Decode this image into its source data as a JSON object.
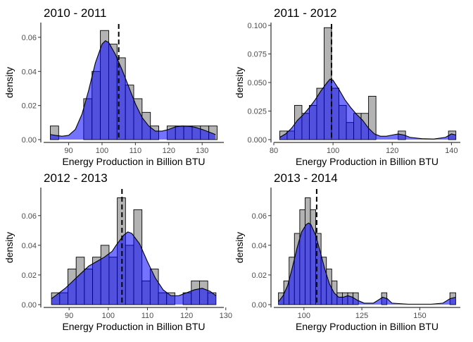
{
  "chart_data": [
    {
      "type": "histogram",
      "title": "2010 - 2011",
      "xlabel": "Energy Production in Billion BTU",
      "ylabel": "density",
      "xlim": [
        82.5,
        136.5
      ],
      "ylim": [
        0,
        0.067
      ],
      "xticks": [
        90,
        100,
        110,
        120,
        130
      ],
      "yticks": [
        0.0,
        0.02,
        0.04,
        0.06
      ],
      "ytick_labels": [
        "0.00",
        "0.02",
        "0.04",
        "0.06"
      ],
      "mean_line": 105,
      "bins": [
        {
          "x0": 84.5,
          "x1": 87,
          "density": 0.008
        },
        {
          "x0": 87,
          "x1": 89.5,
          "density": 0.0
        },
        {
          "x0": 89.5,
          "x1": 92,
          "density": 0.0
        },
        {
          "x0": 92,
          "x1": 94.5,
          "density": 0.0
        },
        {
          "x0": 94.5,
          "x1": 97,
          "density": 0.024
        },
        {
          "x0": 97,
          "x1": 99.5,
          "density": 0.04
        },
        {
          "x0": 99.5,
          "x1": 102,
          "density": 0.064
        },
        {
          "x0": 102,
          "x1": 104.5,
          "density": 0.056
        },
        {
          "x0": 104.5,
          "x1": 107,
          "density": 0.048
        },
        {
          "x0": 107,
          "x1": 109.5,
          "density": 0.032
        },
        {
          "x0": 109.5,
          "x1": 112,
          "density": 0.024
        },
        {
          "x0": 112,
          "x1": 114.5,
          "density": 0.016
        },
        {
          "x0": 114.5,
          "x1": 117,
          "density": 0.008
        },
        {
          "x0": 117,
          "x1": 119.5,
          "density": 0.0
        },
        {
          "x0": 119.5,
          "x1": 122,
          "density": 0.008
        },
        {
          "x0": 122,
          "x1": 124.5,
          "density": 0.008
        },
        {
          "x0": 124.5,
          "x1": 127,
          "density": 0.008
        },
        {
          "x0": 127,
          "x1": 129.5,
          "density": 0.008
        },
        {
          "x0": 129.5,
          "x1": 132,
          "density": 0.008
        },
        {
          "x0": 132,
          "x1": 134.5,
          "density": 0.008
        }
      ],
      "density_curve": [
        [
          84.5,
          0.003
        ],
        [
          86,
          0.0025
        ],
        [
          88,
          0.002
        ],
        [
          90,
          0.0025
        ],
        [
          92,
          0.006
        ],
        [
          94,
          0.015
        ],
        [
          96,
          0.029
        ],
        [
          98,
          0.045
        ],
        [
          100,
          0.056
        ],
        [
          101,
          0.058
        ],
        [
          102,
          0.057
        ],
        [
          104,
          0.05
        ],
        [
          106,
          0.041
        ],
        [
          108,
          0.031
        ],
        [
          110,
          0.021
        ],
        [
          112,
          0.013
        ],
        [
          114,
          0.008
        ],
        [
          116,
          0.005
        ],
        [
          118,
          0.005
        ],
        [
          120,
          0.006
        ],
        [
          122,
          0.0075
        ],
        [
          124,
          0.008
        ],
        [
          126,
          0.0078
        ],
        [
          128,
          0.0072
        ],
        [
          130,
          0.006
        ],
        [
          132,
          0.0045
        ],
        [
          134,
          0.003
        ]
      ]
    },
    {
      "type": "histogram",
      "title": "2011 - 2012",
      "xlabel": "Energy Production in Billion BTU",
      "ylabel": "density",
      "xlim": [
        80,
        143
      ],
      "ylim": [
        0,
        0.1
      ],
      "xticks": [
        80,
        100,
        120,
        140
      ],
      "yticks": [
        0.0,
        0.025,
        0.05,
        0.075,
        0.1
      ],
      "ytick_labels": [
        "0.000",
        "0.025",
        "0.050",
        "0.075",
        "0.100"
      ],
      "mean_line": 99.5,
      "bins": [
        {
          "x0": 82,
          "x1": 84.5,
          "density": 0.0075
        },
        {
          "x0": 84.5,
          "x1": 87,
          "density": 0.0075
        },
        {
          "x0": 87,
          "x1": 89.5,
          "density": 0.03
        },
        {
          "x0": 89.5,
          "x1": 92,
          "density": 0.023
        },
        {
          "x0": 92,
          "x1": 94.5,
          "density": 0.03
        },
        {
          "x0": 94.5,
          "x1": 97,
          "density": 0.045
        },
        {
          "x0": 97,
          "x1": 99.5,
          "density": 0.098
        },
        {
          "x0": 99.5,
          "x1": 102,
          "density": 0.045
        },
        {
          "x0": 102,
          "x1": 104.5,
          "density": 0.03
        },
        {
          "x0": 104.5,
          "x1": 107,
          "density": 0.015
        },
        {
          "x0": 107,
          "x1": 109.5,
          "density": 0.023
        },
        {
          "x0": 109.5,
          "x1": 112,
          "density": 0.023
        },
        {
          "x0": 112,
          "x1": 114.5,
          "density": 0.038
        },
        {
          "x0": 114.5,
          "x1": 117,
          "density": 0.0
        },
        {
          "x0": 117,
          "x1": 119.5,
          "density": 0.0
        },
        {
          "x0": 119.5,
          "x1": 122,
          "density": 0.0
        },
        {
          "x0": 122,
          "x1": 124.5,
          "density": 0.0075
        },
        {
          "x0": 139,
          "x1": 141.5,
          "density": 0.0075
        }
      ],
      "density_curve": [
        [
          82,
          0.002
        ],
        [
          84,
          0.005
        ],
        [
          86,
          0.01
        ],
        [
          88,
          0.017
        ],
        [
          90,
          0.022
        ],
        [
          92,
          0.028
        ],
        [
          94,
          0.035
        ],
        [
          96,
          0.043
        ],
        [
          98,
          0.05
        ],
        [
          99,
          0.053
        ],
        [
          100,
          0.052
        ],
        [
          102,
          0.044
        ],
        [
          104,
          0.035
        ],
        [
          106,
          0.028
        ],
        [
          108,
          0.022
        ],
        [
          110,
          0.017
        ],
        [
          112,
          0.01
        ],
        [
          114,
          0.005
        ],
        [
          116,
          0.003
        ],
        [
          118,
          0.003
        ],
        [
          120,
          0.004
        ],
        [
          122,
          0.005
        ],
        [
          124,
          0.004
        ],
        [
          126,
          0.002
        ],
        [
          130,
          0.0008
        ],
        [
          134,
          0.0005
        ],
        [
          138,
          0.002
        ],
        [
          140,
          0.005
        ],
        [
          141.5,
          0.004
        ]
      ]
    },
    {
      "type": "histogram",
      "title": "2012 - 2013",
      "xlabel": "Energy Production in Billion BTU",
      "ylabel": "density",
      "xlim": [
        83.5,
        129.5
      ],
      "ylim": [
        0,
        0.077
      ],
      "xticks": [
        90,
        100,
        110,
        120,
        130
      ],
      "yticks": [
        0.0,
        0.02,
        0.04,
        0.06
      ],
      "ytick_labels": [
        "0.00",
        "0.02",
        "0.04",
        "0.06"
      ],
      "mean_line": 103.5,
      "bins": [
        {
          "x0": 85.5,
          "x1": 87.6,
          "density": 0.008
        },
        {
          "x0": 87.6,
          "x1": 89.7,
          "density": 0.008
        },
        {
          "x0": 89.7,
          "x1": 91.8,
          "density": 0.024
        },
        {
          "x0": 91.8,
          "x1": 93.9,
          "density": 0.032
        },
        {
          "x0": 93.9,
          "x1": 96.0,
          "density": 0.024
        },
        {
          "x0": 96.0,
          "x1": 98.1,
          "density": 0.032
        },
        {
          "x0": 98.1,
          "x1": 100.2,
          "density": 0.04
        },
        {
          "x0": 100.2,
          "x1": 102.3,
          "density": 0.032
        },
        {
          "x0": 102.3,
          "x1": 104.4,
          "density": 0.072
        },
        {
          "x0": 104.4,
          "x1": 106.5,
          "density": 0.04
        },
        {
          "x0": 106.5,
          "x1": 108.6,
          "density": 0.064
        },
        {
          "x0": 108.6,
          "x1": 110.7,
          "density": 0.016
        },
        {
          "x0": 110.7,
          "x1": 112.8,
          "density": 0.024
        },
        {
          "x0": 112.8,
          "x1": 114.9,
          "density": 0.008
        },
        {
          "x0": 114.9,
          "x1": 117.0,
          "density": 0.008
        },
        {
          "x0": 117.0,
          "x1": 119.1,
          "density": 0.0
        },
        {
          "x0": 119.1,
          "x1": 121.2,
          "density": 0.008
        },
        {
          "x0": 121.2,
          "x1": 123.3,
          "density": 0.016
        },
        {
          "x0": 123.3,
          "x1": 125.4,
          "density": 0.016
        },
        {
          "x0": 125.4,
          "x1": 127.5,
          "density": 0.008
        }
      ],
      "density_curve": [
        [
          85.5,
          0.004
        ],
        [
          87,
          0.007
        ],
        [
          89,
          0.011
        ],
        [
          91,
          0.016
        ],
        [
          93,
          0.021
        ],
        [
          95,
          0.026
        ],
        [
          97,
          0.029
        ],
        [
          99,
          0.032
        ],
        [
          101,
          0.036
        ],
        [
          102,
          0.04
        ],
        [
          104,
          0.047
        ],
        [
          105,
          0.049
        ],
        [
          106,
          0.048
        ],
        [
          108,
          0.041
        ],
        [
          110,
          0.029
        ],
        [
          112,
          0.018
        ],
        [
          114,
          0.01
        ],
        [
          116,
          0.006
        ],
        [
          118,
          0.006
        ],
        [
          120,
          0.008
        ],
        [
          122,
          0.01
        ],
        [
          124,
          0.011
        ],
        [
          126,
          0.009
        ],
        [
          127.5,
          0.006
        ]
      ]
    },
    {
      "type": "histogram",
      "title": "2013 - 2014",
      "xlabel": "Energy Production in Billion BTU",
      "ylabel": "density",
      "xlim": [
        87,
        167.5
      ],
      "ylim": [
        0,
        0.077
      ],
      "xticks": [
        100,
        125,
        150
      ],
      "yticks": [
        0.0,
        0.02,
        0.04,
        0.06
      ],
      "ytick_labels": [
        "0.00",
        "0.02",
        "0.04",
        "0.06"
      ],
      "mean_line": 105.5,
      "bins": [
        {
          "x0": 89,
          "x1": 91.3,
          "density": 0.008
        },
        {
          "x0": 91.3,
          "x1": 93.6,
          "density": 0.016
        },
        {
          "x0": 93.6,
          "x1": 95.9,
          "density": 0.032
        },
        {
          "x0": 95.9,
          "x1": 98.2,
          "density": 0.048
        },
        {
          "x0": 98.2,
          "x1": 100.5,
          "density": 0.064
        },
        {
          "x0": 100.5,
          "x1": 102.8,
          "density": 0.072
        },
        {
          "x0": 102.8,
          "x1": 105.1,
          "density": 0.064
        },
        {
          "x0": 105.1,
          "x1": 107.4,
          "density": 0.048
        },
        {
          "x0": 107.4,
          "x1": 109.7,
          "density": 0.032
        },
        {
          "x0": 109.7,
          "x1": 112.0,
          "density": 0.024
        },
        {
          "x0": 112.0,
          "x1": 114.3,
          "density": 0.016
        },
        {
          "x0": 114.3,
          "x1": 116.6,
          "density": 0.008
        },
        {
          "x0": 116.6,
          "x1": 118.9,
          "density": 0.008
        },
        {
          "x0": 118.9,
          "x1": 121.2,
          "density": 0.008
        },
        {
          "x0": 121.2,
          "x1": 123.5,
          "density": 0.008
        },
        {
          "x0": 133.5,
          "x1": 135.8,
          "density": 0.008
        },
        {
          "x0": 163,
          "x1": 165.5,
          "density": 0.008
        }
      ],
      "density_curve": [
        [
          89,
          0.002
        ],
        [
          91,
          0.006
        ],
        [
          93,
          0.013
        ],
        [
          95,
          0.025
        ],
        [
          97,
          0.038
        ],
        [
          99,
          0.049
        ],
        [
          101,
          0.054
        ],
        [
          102,
          0.055
        ],
        [
          103,
          0.054
        ],
        [
          105,
          0.047
        ],
        [
          107,
          0.036
        ],
        [
          109,
          0.024
        ],
        [
          111,
          0.014
        ],
        [
          113,
          0.008
        ],
        [
          115,
          0.005
        ],
        [
          117,
          0.005
        ],
        [
          119,
          0.006
        ],
        [
          121,
          0.005
        ],
        [
          123,
          0.003
        ],
        [
          126,
          0.001
        ],
        [
          130,
          0.001
        ],
        [
          132,
          0.003
        ],
        [
          134,
          0.005
        ],
        [
          136,
          0.004
        ],
        [
          138,
          0.001
        ],
        [
          145,
          0.0003
        ],
        [
          155,
          0.0003
        ],
        [
          160,
          0.001
        ],
        [
          163,
          0.004
        ],
        [
          165.5,
          0.005
        ]
      ]
    }
  ]
}
